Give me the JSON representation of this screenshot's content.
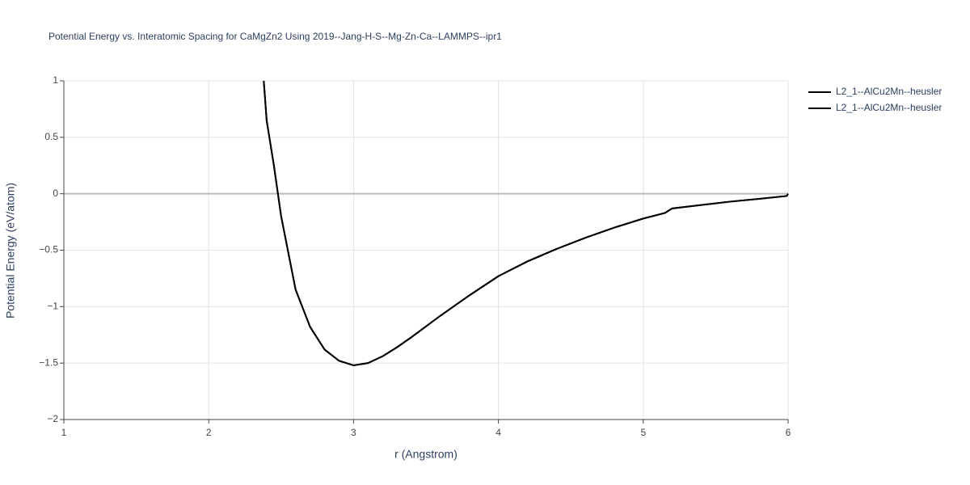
{
  "chart_data": {
    "type": "line",
    "title": "Potential Energy vs. Interatomic Spacing for CaMgZn2 Using 2019--Jang-H-S--Mg-Zn-Ca--LAMMPS--ipr1",
    "x_label": "r (Angstrom)",
    "y_label": "Potential Energy (eV/atom)",
    "xlim": [
      1,
      6
    ],
    "ylim": [
      -2,
      1
    ],
    "xticks": [
      1,
      2,
      3,
      4,
      5,
      6
    ],
    "yticks": [
      1,
      0.5,
      0,
      {
        "value": -0.5,
        "label": "−0.5"
      },
      {
        "value": -1,
        "label": "−1"
      },
      {
        "value": -1.5,
        "label": "−1.5"
      },
      {
        "value": -2,
        "label": "−2"
      }
    ],
    "grid": true,
    "legend": "top-right",
    "series": [
      {
        "name": "L2_1--AlCu2Mn--heusler",
        "color": "#000000",
        "x": [
          2.38,
          2.4,
          2.45,
          2.5,
          2.6,
          2.7,
          2.8,
          2.9,
          3.0,
          3.1,
          3.2,
          3.3,
          3.4,
          3.6,
          3.8,
          4.0,
          4.2,
          4.4,
          4.6,
          4.8,
          5.0,
          5.15,
          5.2,
          5.4,
          5.6,
          5.8,
          5.99,
          6.0
        ],
        "values": [
          1.0,
          0.65,
          0.25,
          -0.2,
          -0.85,
          -1.18,
          -1.38,
          -1.48,
          -1.52,
          -1.5,
          -1.44,
          -1.36,
          -1.27,
          -1.08,
          -0.9,
          -0.73,
          -0.6,
          -0.49,
          -0.39,
          -0.3,
          -0.22,
          -0.17,
          -0.13,
          -0.1,
          -0.07,
          -0.045,
          -0.02,
          0.0
        ]
      },
      {
        "name": "L2_1--AlCu2Mn--heusler",
        "color": "#000000",
        "x": [
          2.38,
          2.4,
          2.45,
          2.5,
          2.6,
          2.7,
          2.8,
          2.9,
          3.0,
          3.1,
          3.2,
          3.3,
          3.4,
          3.6,
          3.8,
          4.0,
          4.2,
          4.4,
          4.6,
          4.8,
          5.0,
          5.15,
          5.2,
          5.4,
          5.6,
          5.8,
          5.99,
          6.0
        ],
        "values": [
          1.0,
          0.65,
          0.25,
          -0.2,
          -0.85,
          -1.18,
          -1.38,
          -1.48,
          -1.52,
          -1.5,
          -1.44,
          -1.36,
          -1.27,
          -1.08,
          -0.9,
          -0.73,
          -0.6,
          -0.49,
          -0.39,
          -0.3,
          -0.22,
          -0.17,
          -0.13,
          -0.1,
          -0.07,
          -0.045,
          -0.02,
          0.0
        ]
      }
    ]
  }
}
